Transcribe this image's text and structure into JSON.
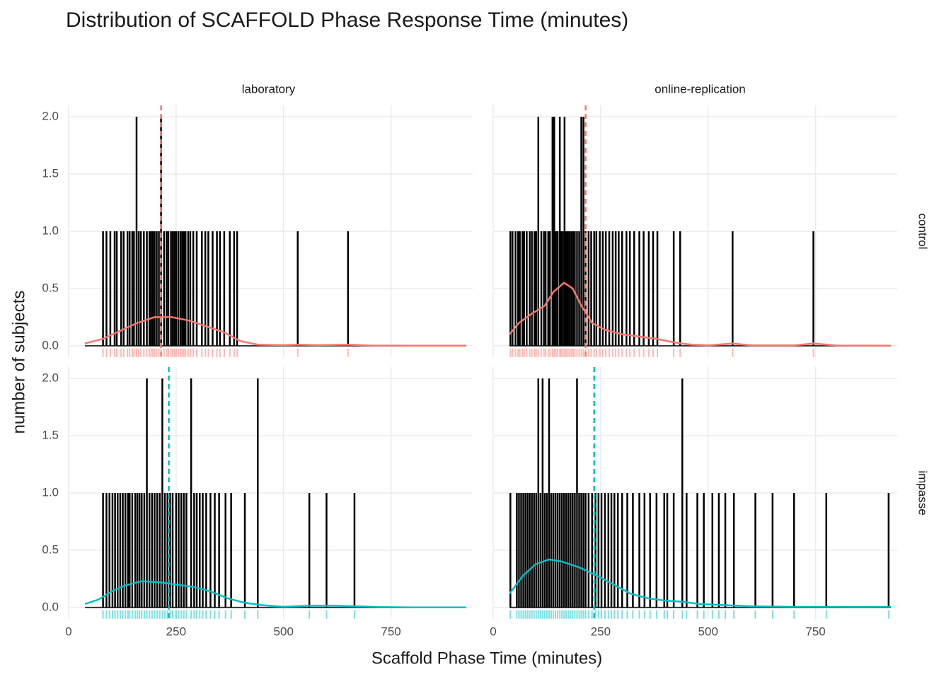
{
  "chart_data": {
    "type": "histogram",
    "title": "Distribution of SCAFFOLD Phase Response Time (minutes)",
    "xlabel": "Scaffold Phase Time (minutes)",
    "ylabel": "number of subjects",
    "xlim": [
      0,
      940
    ],
    "xticks": [
      0,
      250,
      500,
      750
    ],
    "ylim": [
      -0.1,
      2.1
    ],
    "yticks": [
      {
        "value": 0,
        "label": "0.0"
      },
      0.5,
      {
        "value": 1,
        "label": "1.0"
      },
      1.5,
      {
        "value": 2,
        "label": "2.0"
      }
    ],
    "grid": true,
    "columns": [
      "laboratory",
      "online-replication"
    ],
    "rows": [
      {
        "name": "control",
        "color": "#F8766D",
        "panels": [
          {
            "spikes": {
              "x": [
                80,
                88,
                97,
                107,
                112,
                122,
                128,
                137,
                142,
                148,
                152,
                158,
                163,
                168,
                175,
                182,
                188,
                192,
                196,
                200,
                205,
                210,
                215,
                222,
                228,
                232,
                238,
                242,
                246,
                250,
                255,
                260,
                264,
                268,
                272,
                278,
                283,
                290,
                298,
                310,
                318,
                325,
                335,
                345,
                352,
                362,
                375,
                385,
                392,
                533,
                650
              ],
              "values": [
                1,
                1,
                1,
                1,
                1,
                1,
                1,
                1,
                1,
                1,
                1,
                2,
                1,
                1,
                1,
                1,
                1,
                1,
                1,
                1,
                1,
                1,
                2,
                1,
                1,
                1,
                1,
                1,
                1,
                1,
                1,
                1,
                1,
                1,
                1,
                1,
                1,
                1,
                1,
                1,
                1,
                1,
                1,
                1,
                1,
                1,
                1,
                1,
                1,
                1,
                1
              ]
            },
            "density": {
              "x": [
                38,
                80,
                120,
                160,
                200,
                240,
                280,
                320,
                360,
                400,
                440,
                500,
                533,
                580,
                650,
                700,
                800,
                925
              ],
              "values": [
                0.02,
                0.06,
                0.13,
                0.2,
                0.25,
                0.25,
                0.22,
                0.17,
                0.12,
                0.04,
                0.01,
                0.005,
                0.01,
                0.005,
                0.01,
                0.002,
                0,
                0
              ]
            },
            "mean": 215
          },
          {
            "spikes": {
              "x": [
                40,
                45,
                52,
                58,
                62,
                68,
                72,
                78,
                85,
                90,
                96,
                100,
                105,
                112,
                118,
                122,
                128,
                132,
                138,
                142,
                146,
                150,
                155,
                158,
                162,
                166,
                170,
                174,
                178,
                182,
                186,
                190,
                195,
                200,
                205,
                210,
                215,
                222,
                228,
                235,
                240,
                248,
                255,
                262,
                270,
                278,
                285,
                292,
                300,
                310,
                318,
                328,
                340,
                350,
                362,
                372,
                382,
                420,
                435,
                557,
                745
              ],
              "values": [
                1,
                1,
                1,
                1,
                1,
                1,
                1,
                1,
                1,
                1,
                1,
                1,
                2,
                1,
                1,
                1,
                1,
                1,
                2,
                2,
                1,
                1,
                2,
                1,
                1,
                2,
                1,
                1,
                1,
                1,
                1,
                1,
                1,
                1,
                2,
                2,
                1,
                1,
                1,
                1,
                1,
                1,
                1,
                1,
                1,
                1,
                1,
                1,
                1,
                1,
                1,
                1,
                1,
                1,
                1,
                1,
                1,
                1,
                1,
                1,
                1
              ]
            },
            "density": {
              "x": [
                38,
                60,
                90,
                120,
                140,
                165,
                185,
                205,
                230,
                260,
                300,
                340,
                380,
                420,
                460,
                500,
                557,
                600,
                700,
                745,
                800,
                925
              ],
              "values": [
                0.1,
                0.2,
                0.28,
                0.35,
                0.47,
                0.55,
                0.5,
                0.35,
                0.2,
                0.14,
                0.1,
                0.08,
                0.06,
                0.03,
                0.01,
                0.003,
                0.02,
                0.003,
                0.003,
                0.02,
                0.002,
                0
              ]
            },
            "mean": 215
          }
        ]
      },
      {
        "name": "impasse",
        "color": "#00BFC4",
        "panels": [
          {
            "spikes": {
              "x": [
                80,
                88,
                95,
                102,
                108,
                114,
                120,
                126,
                132,
                138,
                142,
                148,
                155,
                160,
                165,
                170,
                176,
                182,
                188,
                194,
                200,
                206,
                212,
                218,
                224,
                230,
                236,
                242,
                250,
                256,
                262,
                268,
                274,
                285,
                292,
                298,
                305,
                312,
                320,
                330,
                340,
                350,
                365,
                378,
                410,
                440,
                560,
                600,
                665
              ],
              "values": [
                1,
                1,
                1,
                1,
                1,
                1,
                1,
                1,
                1,
                1,
                1,
                1,
                1,
                1,
                1,
                1,
                1,
                2,
                1,
                1,
                1,
                1,
                1,
                2,
                1,
                1,
                1,
                1,
                1,
                1,
                1,
                1,
                1,
                2,
                1,
                1,
                1,
                1,
                1,
                1,
                1,
                1,
                1,
                1,
                1,
                2,
                1,
                1,
                1
              ]
            },
            "density": {
              "x": [
                38,
                70,
                100,
                130,
                170,
                210,
                250,
                290,
                330,
                370,
                410,
                450,
                500,
                560,
                620,
                665,
                720,
                800,
                925
              ],
              "values": [
                0.03,
                0.07,
                0.14,
                0.19,
                0.23,
                0.22,
                0.2,
                0.18,
                0.14,
                0.08,
                0.04,
                0.02,
                0.005,
                0.015,
                0.015,
                0.01,
                0.003,
                0,
                0
              ]
            },
            "mean": 233
          },
          {
            "spikes": {
              "x": [
                40,
                55,
                60,
                65,
                70,
                75,
                80,
                85,
                90,
                95,
                100,
                105,
                110,
                115,
                120,
                125,
                130,
                135,
                140,
                145,
                150,
                155,
                160,
                165,
                170,
                175,
                180,
                185,
                190,
                195,
                200,
                205,
                210,
                215,
                222,
                230,
                238,
                245,
                252,
                260,
                268,
                275,
                282,
                290,
                300,
                312,
                325,
                340,
                352,
                365,
                380,
                398,
                405,
                420,
                440,
                450,
                475,
                490,
                510,
                525,
                540,
                560,
                610,
                650,
                700,
                775,
                920
              ],
              "values": [
                1,
                1,
                1,
                1,
                1,
                1,
                1,
                1,
                1,
                1,
                1,
                2,
                1,
                2,
                1,
                1,
                2,
                1,
                1,
                1,
                1,
                1,
                1,
                1,
                1,
                1,
                1,
                1,
                1,
                2,
                1,
                1,
                1,
                1,
                1,
                1,
                1,
                1,
                1,
                1,
                1,
                1,
                1,
                1,
                1,
                1,
                1,
                1,
                1,
                1,
                1,
                1,
                1,
                1,
                2,
                1,
                1,
                1,
                1,
                1,
                1,
                1,
                1,
                1,
                1,
                1,
                1
              ]
            },
            "density": {
              "x": [
                38,
                70,
                100,
                130,
                160,
                200,
                240,
                280,
                320,
                360,
                400,
                440,
                480,
                540,
                600,
                700,
                775,
                850,
                925
              ],
              "values": [
                0.12,
                0.28,
                0.38,
                0.42,
                0.4,
                0.35,
                0.28,
                0.2,
                0.12,
                0.08,
                0.06,
                0.05,
                0.03,
                0.02,
                0.01,
                0.005,
                0.005,
                0.003,
                0.005
              ]
            },
            "mean": 235
          }
        ]
      }
    ]
  }
}
